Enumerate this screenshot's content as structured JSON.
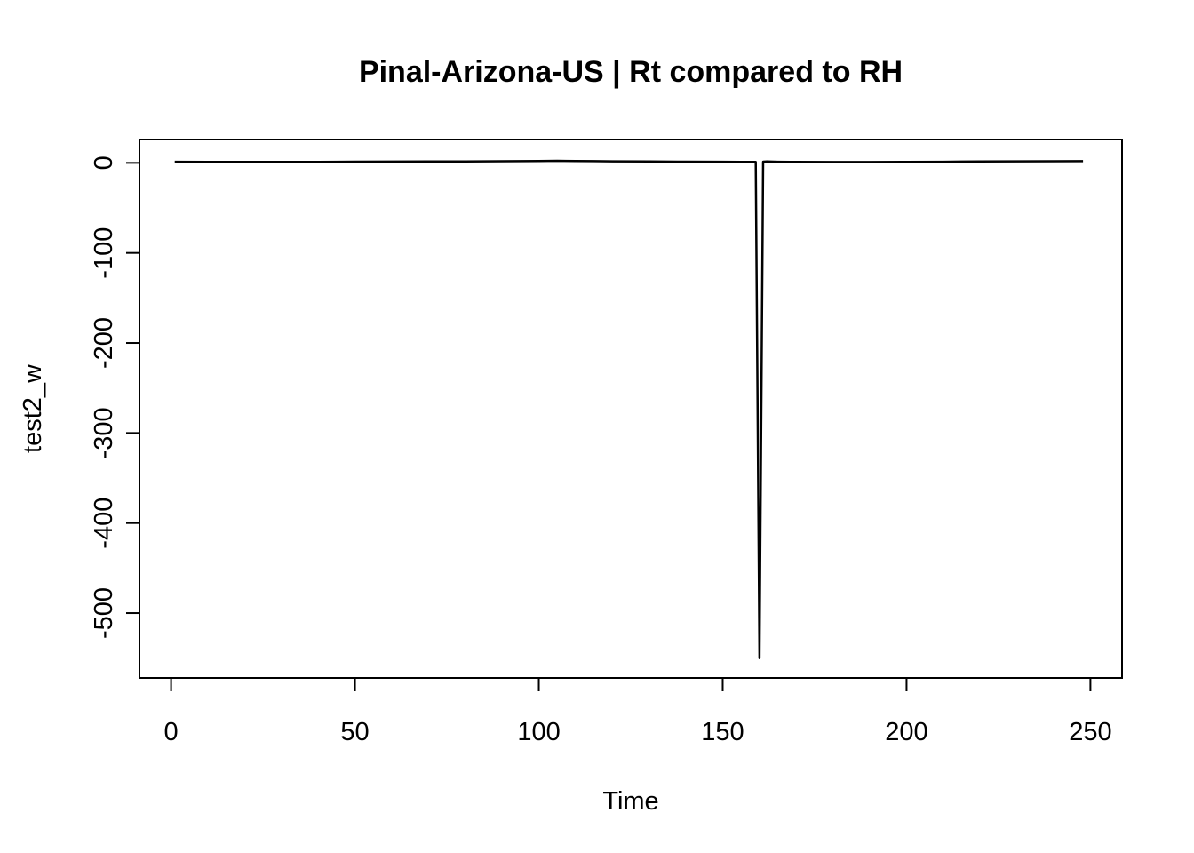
{
  "chart_data": {
    "type": "line",
    "title": "Pinal-Arizona-US | Rt compared to RH",
    "xlabel": "Time",
    "ylabel": "test2_w",
    "xlim": [
      -8.6,
      258.6
    ],
    "ylim": [
      -572,
      26
    ],
    "xticks": [
      0,
      50,
      100,
      150,
      200,
      250
    ],
    "yticks": [
      0,
      -100,
      -200,
      -300,
      -400,
      -500
    ],
    "grid": false,
    "legend": "none",
    "line_color": "#000000",
    "series": [
      {
        "x": [
          1,
          10,
          20,
          30,
          40,
          50,
          60,
          70,
          80,
          90,
          100,
          105,
          110,
          115,
          120,
          130,
          140,
          150,
          155,
          159,
          160,
          161,
          162,
          165,
          170,
          180,
          190,
          200,
          210,
          215,
          220,
          230,
          240,
          248
        ],
        "y": [
          1.2,
          1.1,
          1.0,
          1.0,
          1.1,
          1.3,
          1.4,
          1.5,
          1.6,
          1.8,
          2.0,
          2.3,
          2.1,
          1.9,
          1.7,
          1.5,
          1.3,
          1.2,
          1.1,
          1.0,
          -550,
          1.3,
          1.5,
          1.2,
          1.0,
          0.9,
          0.9,
          1.0,
          1.2,
          1.4,
          1.6,
          1.7,
          1.8,
          1.9
        ]
      }
    ]
  }
}
